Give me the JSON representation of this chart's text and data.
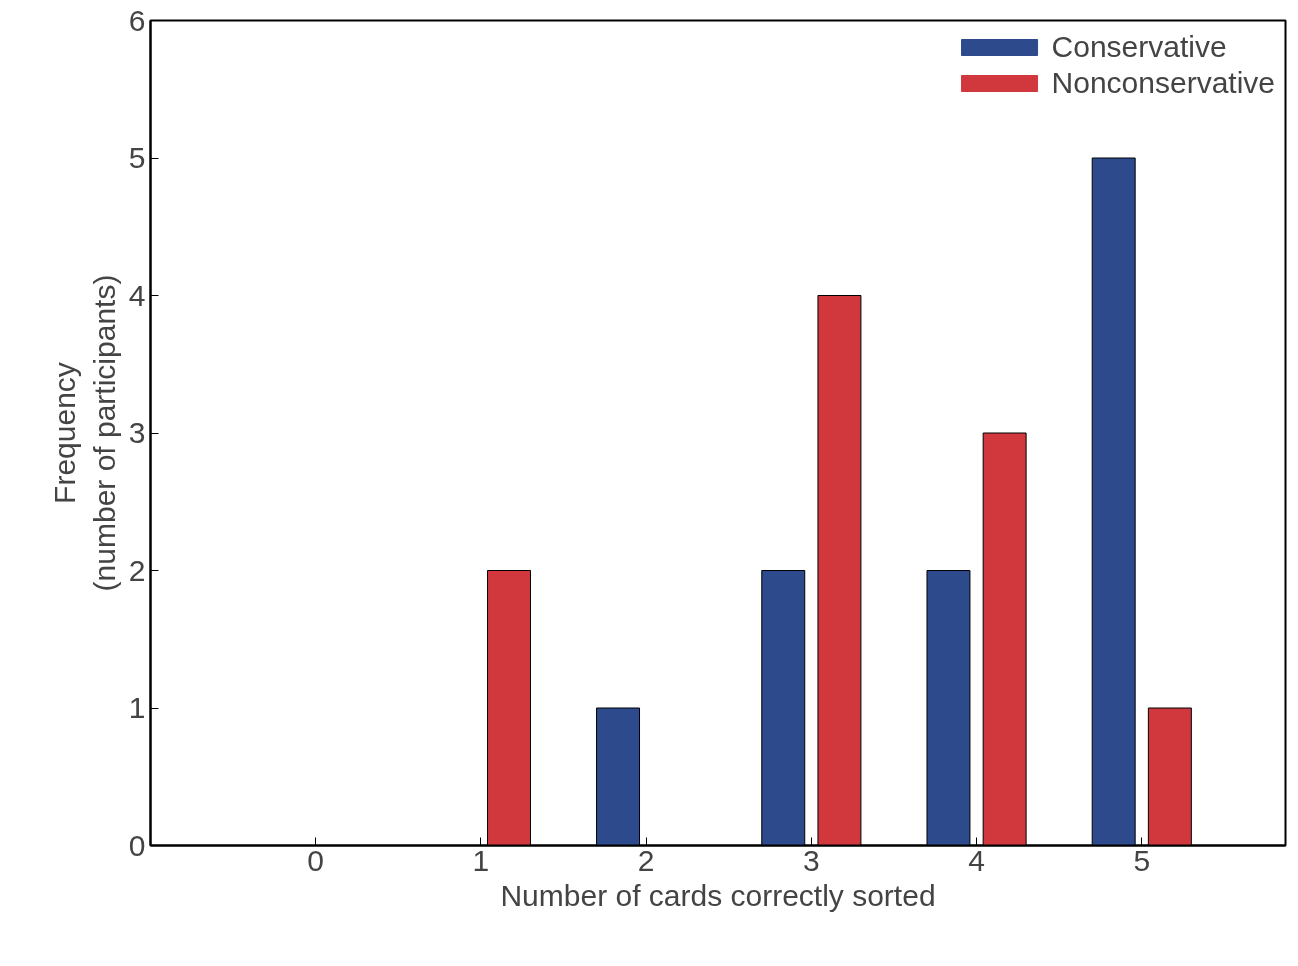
{
  "chart_data": {
    "type": "bar",
    "xlabel": "Number of cards correctly sorted",
    "ylabel": "Frequency\n(number of participants)",
    "x": [
      0,
      1,
      2,
      3,
      4,
      5
    ],
    "xlim": [
      -1,
      5.87
    ],
    "xticks": [
      0,
      1,
      2,
      3,
      4,
      5
    ],
    "ylim": [
      0,
      6
    ],
    "yticks": [
      0,
      1,
      2,
      3,
      4,
      5,
      6
    ],
    "grid": false,
    "legend": "top right",
    "series": [
      {
        "name": "Conservative",
        "color": "#2c4a8c",
        "values": [
          0,
          0,
          1,
          2,
          2,
          5
        ]
      },
      {
        "name": "Nonconservative",
        "color": "#d1383d",
        "values": [
          0,
          2,
          0,
          4,
          3,
          1
        ]
      }
    ]
  }
}
